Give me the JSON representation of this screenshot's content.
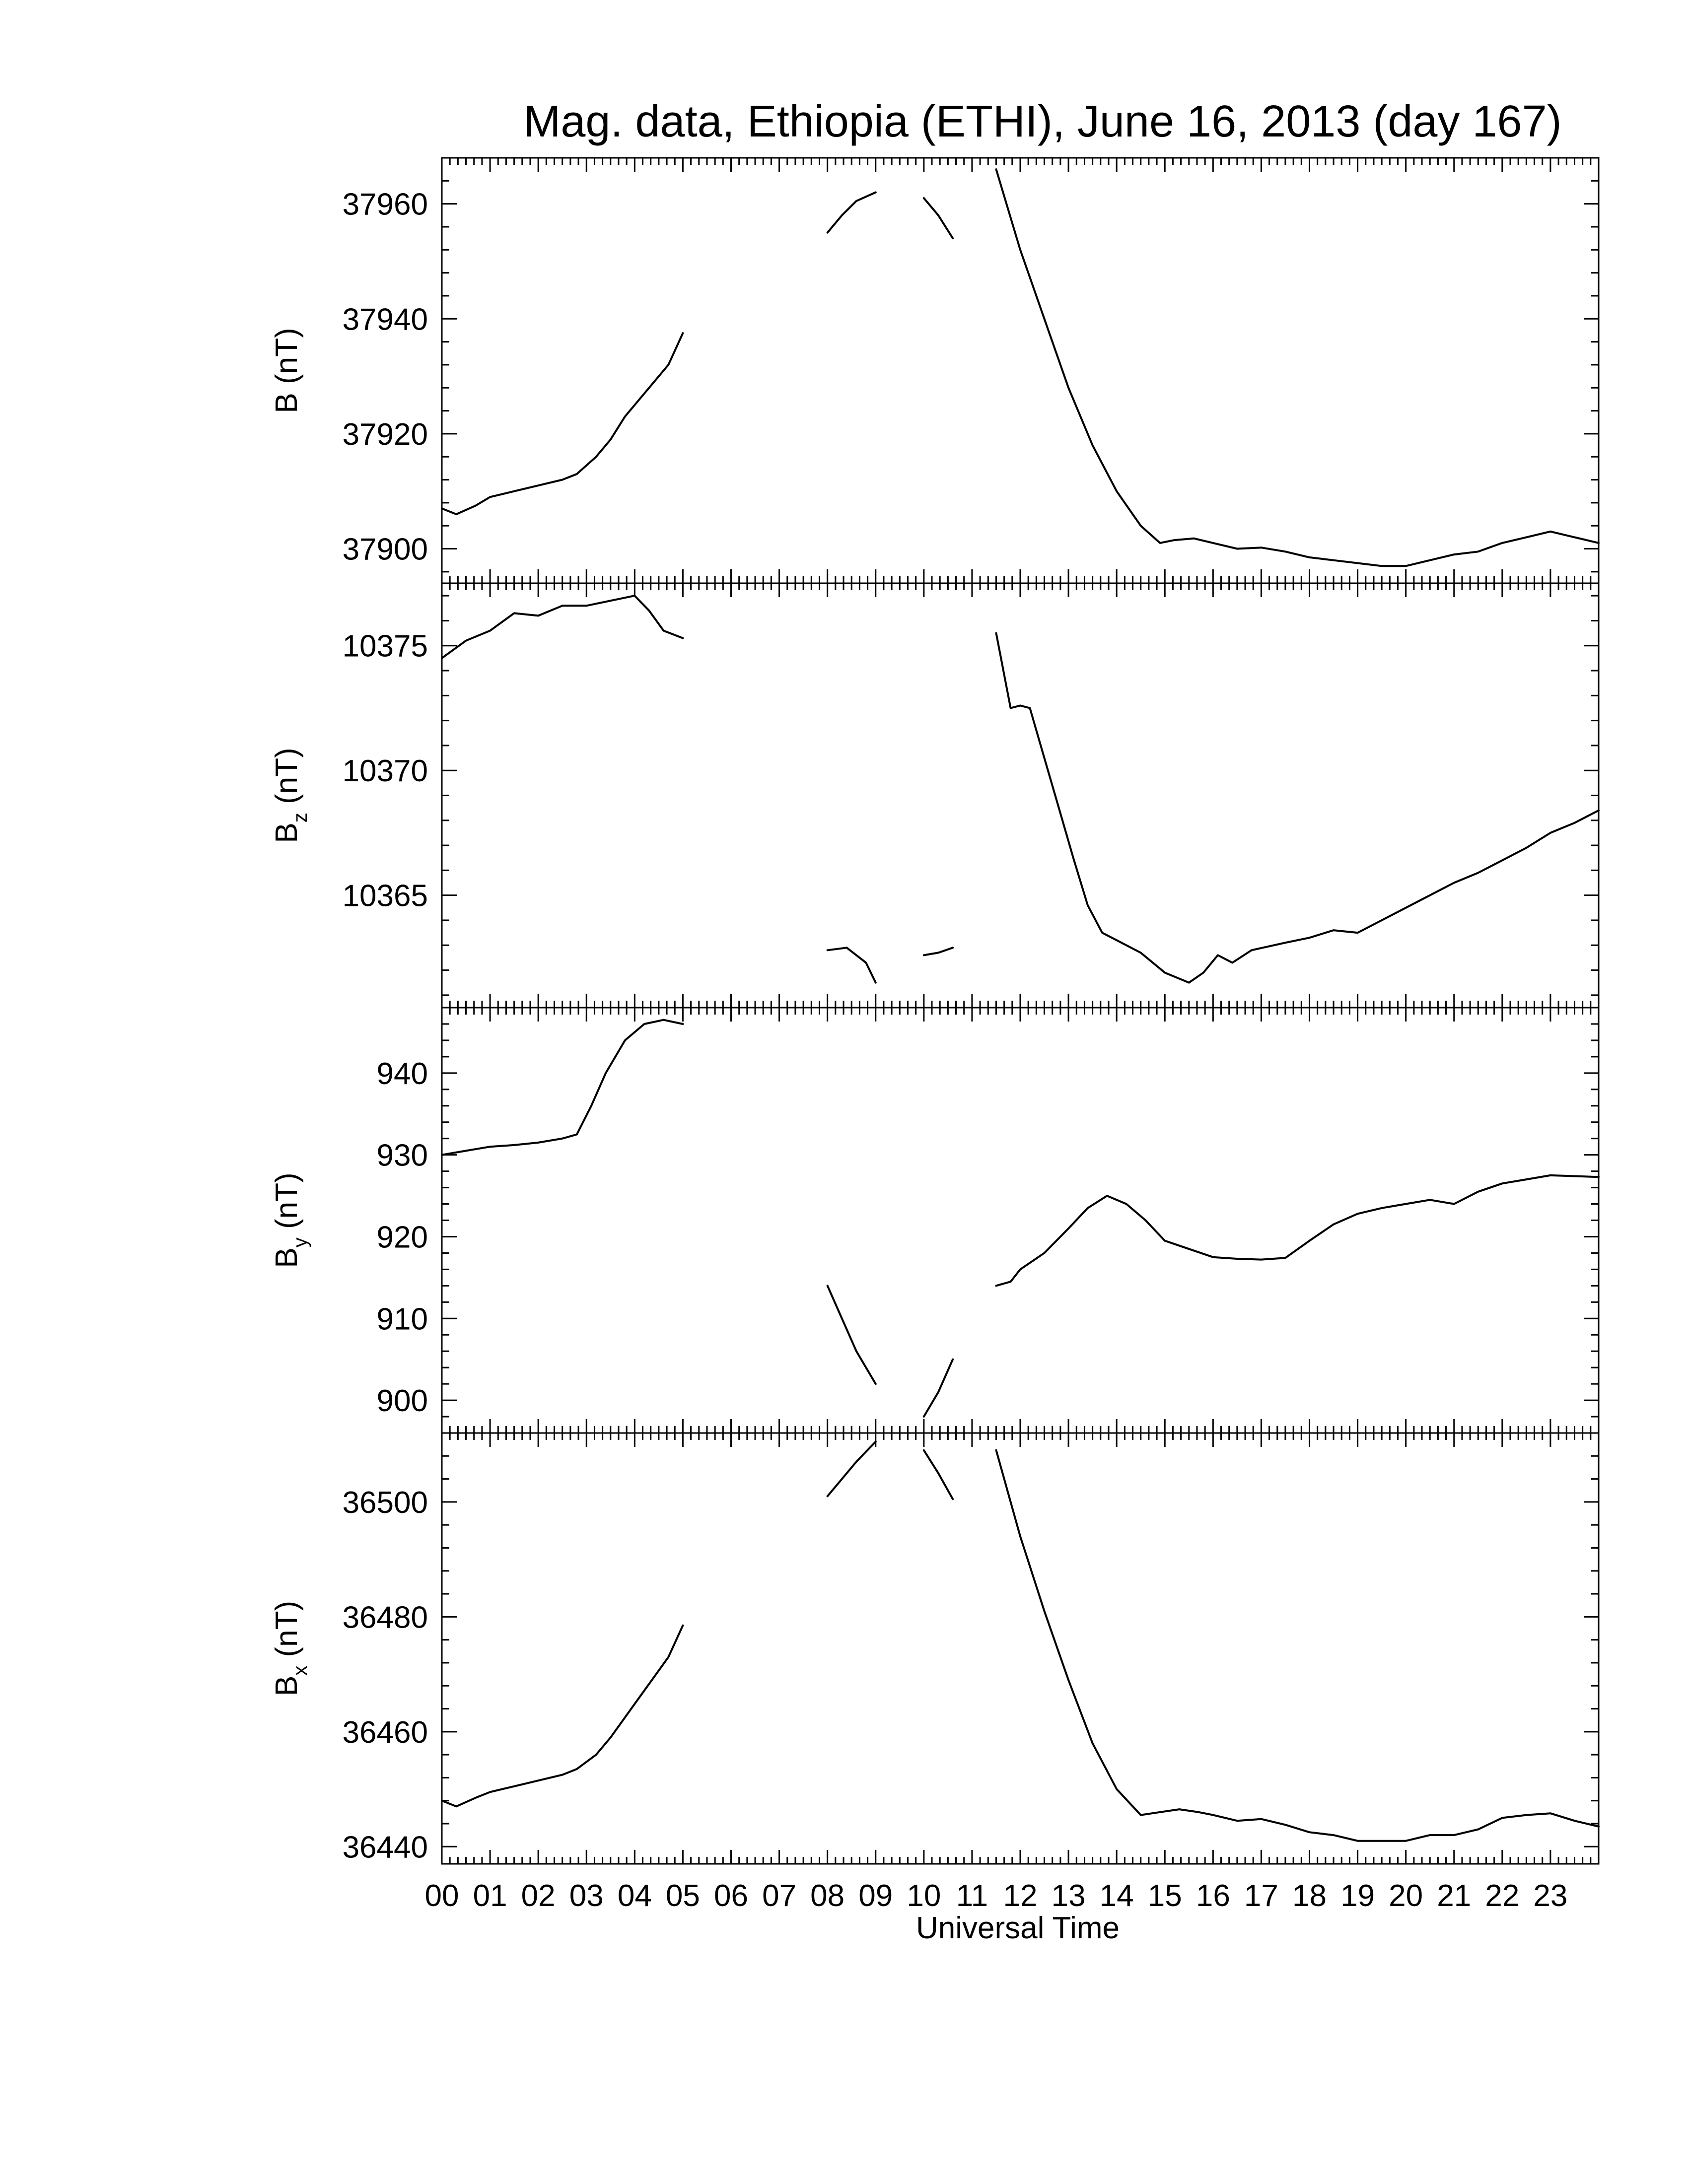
{
  "chart_data": {
    "type": "line",
    "title": "Mag. data, Ethiopia (ETHI), June 16, 2013 (day 167)",
    "xlabel": "Universal Time",
    "xlim": [
      0,
      24
    ],
    "x_tick_labels": [
      "00",
      "01",
      "02",
      "03",
      "04",
      "05",
      "06",
      "07",
      "08",
      "09",
      "10",
      "11",
      "12",
      "13",
      "14",
      "15",
      "16",
      "17",
      "18",
      "19",
      "20",
      "21",
      "22",
      "23"
    ],
    "panels": [
      {
        "id": "B",
        "ylabel": "B (nT)",
        "ylabel_main": "B",
        "ylabel_sub": "",
        "ylabel_unit": " (nT)",
        "ylim": [
          37894,
          37968
        ],
        "yticks": [
          37900,
          37920,
          37940,
          37960
        ],
        "segments": [
          [
            [
              0.0,
              37907
            ],
            [
              0.3,
              37906
            ],
            [
              0.7,
              37907.5
            ],
            [
              1.0,
              37909
            ],
            [
              1.5,
              37910
            ],
            [
              2.0,
              37911
            ],
            [
              2.5,
              37912
            ],
            [
              2.8,
              37913
            ],
            [
              3.2,
              37916
            ],
            [
              3.5,
              37919
            ],
            [
              3.8,
              37923
            ],
            [
              4.1,
              37926
            ],
            [
              4.4,
              37929
            ],
            [
              4.7,
              37932
            ],
            [
              5.0,
              37937.5
            ]
          ],
          [
            [
              8.0,
              37955
            ],
            [
              8.3,
              37958
            ],
            [
              8.6,
              37960.5
            ],
            [
              9.0,
              37962
            ]
          ],
          [
            [
              10.0,
              37961
            ],
            [
              10.3,
              37958
            ],
            [
              10.6,
              37954
            ]
          ],
          [
            [
              11.5,
              37966
            ],
            [
              12.0,
              37952
            ],
            [
              12.5,
              37940
            ],
            [
              13.0,
              37928
            ],
            [
              13.5,
              37918
            ],
            [
              14.0,
              37910
            ],
            [
              14.5,
              37904
            ],
            [
              14.9,
              37901
            ],
            [
              15.2,
              37901.5
            ],
            [
              15.6,
              37901.8
            ],
            [
              16.0,
              37901
            ],
            [
              16.5,
              37900
            ],
            [
              17.0,
              37900.2
            ],
            [
              17.5,
              37899.5
            ],
            [
              18.0,
              37898.5
            ],
            [
              18.5,
              37898
            ],
            [
              19.0,
              37897.5
            ],
            [
              19.5,
              37897
            ],
            [
              20.0,
              37897
            ],
            [
              20.5,
              37898
            ],
            [
              21.0,
              37899
            ],
            [
              21.5,
              37899.5
            ],
            [
              22.0,
              37901
            ],
            [
              22.5,
              37902
            ],
            [
              23.0,
              37903
            ],
            [
              23.5,
              37902
            ],
            [
              24.0,
              37901
            ]
          ]
        ]
      },
      {
        "id": "Bz",
        "ylabel": "Bz (nT)",
        "ylabel_main": "B",
        "ylabel_sub": "z",
        "ylabel_unit": " (nT)",
        "ylim": [
          10360.5,
          10377.5
        ],
        "yticks": [
          10365,
          10370,
          10375
        ],
        "segments": [
          [
            [
              0.0,
              10374.5
            ],
            [
              0.5,
              10375.2
            ],
            [
              1.0,
              10375.6
            ],
            [
              1.5,
              10376.3
            ],
            [
              2.0,
              10376.2
            ],
            [
              2.5,
              10376.6
            ],
            [
              3.0,
              10376.6
            ],
            [
              3.5,
              10376.8
            ],
            [
              4.0,
              10377.0
            ],
            [
              4.3,
              10376.4
            ],
            [
              4.6,
              10375.6
            ],
            [
              5.0,
              10375.3
            ]
          ],
          [
            [
              8.0,
              10362.8
            ],
            [
              8.4,
              10362.9
            ],
            [
              8.8,
              10362.3
            ],
            [
              9.0,
              10361.5
            ]
          ],
          [
            [
              10.0,
              10362.6
            ],
            [
              10.3,
              10362.7
            ],
            [
              10.6,
              10362.9
            ]
          ],
          [
            [
              11.5,
              10375.5
            ],
            [
              11.8,
              10372.5
            ],
            [
              12.0,
              10372.6
            ],
            [
              12.2,
              10372.5
            ],
            [
              12.5,
              10370.5
            ],
            [
              12.8,
              10368.5
            ],
            [
              13.1,
              10366.5
            ],
            [
              13.4,
              10364.6
            ],
            [
              13.7,
              10363.5
            ],
            [
              14.0,
              10363.2
            ],
            [
              14.5,
              10362.7
            ],
            [
              15.0,
              10361.9
            ],
            [
              15.5,
              10361.5
            ],
            [
              15.8,
              10361.9
            ],
            [
              16.1,
              10362.6
            ],
            [
              16.4,
              10362.3
            ],
            [
              16.8,
              10362.8
            ],
            [
              17.5,
              10363.1
            ],
            [
              18.0,
              10363.3
            ],
            [
              18.5,
              10363.6
            ],
            [
              19.0,
              10363.5
            ],
            [
              19.5,
              10364.0
            ],
            [
              20.0,
              10364.5
            ],
            [
              20.5,
              10365.0
            ],
            [
              21.0,
              10365.5
            ],
            [
              21.5,
              10365.9
            ],
            [
              22.0,
              10366.4
            ],
            [
              22.5,
              10366.9
            ],
            [
              23.0,
              10367.5
            ],
            [
              23.5,
              10367.9
            ],
            [
              24.0,
              10368.4
            ]
          ]
        ]
      },
      {
        "id": "By",
        "ylabel": "By (nT)",
        "ylabel_main": "B",
        "ylabel_sub": "y",
        "ylabel_unit": " (nT)",
        "ylim": [
          896,
          948
        ],
        "yticks": [
          900,
          910,
          920,
          930,
          940
        ],
        "segments": [
          [
            [
              0.0,
              930
            ],
            [
              0.5,
              930.5
            ],
            [
              1.0,
              931
            ],
            [
              1.5,
              931.2
            ],
            [
              2.0,
              931.5
            ],
            [
              2.5,
              932
            ],
            [
              2.8,
              932.5
            ],
            [
              3.1,
              936
            ],
            [
              3.4,
              940
            ],
            [
              3.8,
              944
            ],
            [
              4.2,
              946
            ],
            [
              4.6,
              946.5
            ],
            [
              5.0,
              946
            ]
          ],
          [
            [
              8.0,
              914
            ],
            [
              8.3,
              910
            ],
            [
              8.6,
              906
            ],
            [
              9.0,
              902
            ]
          ],
          [
            [
              10.0,
              898
            ],
            [
              10.3,
              901
            ],
            [
              10.6,
              905
            ]
          ],
          [
            [
              11.5,
              914
            ],
            [
              11.8,
              914.5
            ],
            [
              12.0,
              916
            ],
            [
              12.5,
              918
            ],
            [
              13.0,
              921
            ],
            [
              13.4,
              923.5
            ],
            [
              13.8,
              925
            ],
            [
              14.2,
              924
            ],
            [
              14.6,
              922
            ],
            [
              15.0,
              919.5
            ],
            [
              15.5,
              918.5
            ],
            [
              16.0,
              917.5
            ],
            [
              16.5,
              917.3
            ],
            [
              17.0,
              917.2
            ],
            [
              17.5,
              917.4
            ],
            [
              18.0,
              919.5
            ],
            [
              18.5,
              921.5
            ],
            [
              19.0,
              922.8
            ],
            [
              19.5,
              923.5
            ],
            [
              20.0,
              924
            ],
            [
              20.5,
              924.5
            ],
            [
              21.0,
              924
            ],
            [
              21.5,
              925.5
            ],
            [
              22.0,
              926.5
            ],
            [
              22.5,
              927
            ],
            [
              23.0,
              927.5
            ],
            [
              23.5,
              927.4
            ],
            [
              24.0,
              927.3
            ]
          ]
        ]
      },
      {
        "id": "Bx",
        "ylabel": "Bx (nT)",
        "ylabel_main": "B",
        "ylabel_sub": "x",
        "ylabel_unit": " (nT)",
        "ylim": [
          36437,
          36512
        ],
        "yticks": [
          36440,
          36460,
          36480,
          36500
        ],
        "segments": [
          [
            [
              0.0,
              36448
            ],
            [
              0.3,
              36447
            ],
            [
              0.7,
              36448.5
            ],
            [
              1.0,
              36449.5
            ],
            [
              1.5,
              36450.5
            ],
            [
              2.0,
              36451.5
            ],
            [
              2.5,
              36452.5
            ],
            [
              2.8,
              36453.5
            ],
            [
              3.2,
              36456
            ],
            [
              3.5,
              36459
            ],
            [
              3.8,
              36462.5
            ],
            [
              4.1,
              36466
            ],
            [
              4.4,
              36469.5
            ],
            [
              4.7,
              36473
            ],
            [
              5.0,
              36478.5
            ]
          ],
          [
            [
              8.0,
              36501
            ],
            [
              8.3,
              36504
            ],
            [
              8.6,
              36507
            ],
            [
              9.0,
              36510.5
            ]
          ],
          [
            [
              10.0,
              36509
            ],
            [
              10.3,
              36505
            ],
            [
              10.6,
              36500.5
            ]
          ],
          [
            [
              11.5,
              36509
            ],
            [
              12.0,
              36494
            ],
            [
              12.5,
              36481
            ],
            [
              13.0,
              36469
            ],
            [
              13.5,
              36458
            ],
            [
              14.0,
              36450
            ],
            [
              14.5,
              36445.5
            ],
            [
              14.9,
              36446
            ],
            [
              15.3,
              36446.5
            ],
            [
              15.7,
              36446
            ],
            [
              16.0,
              36445.5
            ],
            [
              16.5,
              36444.5
            ],
            [
              17.0,
              36444.8
            ],
            [
              17.5,
              36443.8
            ],
            [
              18.0,
              36442.5
            ],
            [
              18.5,
              36442
            ],
            [
              19.0,
              36441
            ],
            [
              19.5,
              36441
            ],
            [
              20.0,
              36441
            ],
            [
              20.5,
              36442
            ],
            [
              21.0,
              36442
            ],
            [
              21.5,
              36443
            ],
            [
              22.0,
              36445
            ],
            [
              22.5,
              36445.5
            ],
            [
              23.0,
              36445.8
            ],
            [
              23.5,
              36444.5
            ],
            [
              24.0,
              36443.5
            ]
          ]
        ]
      }
    ]
  }
}
